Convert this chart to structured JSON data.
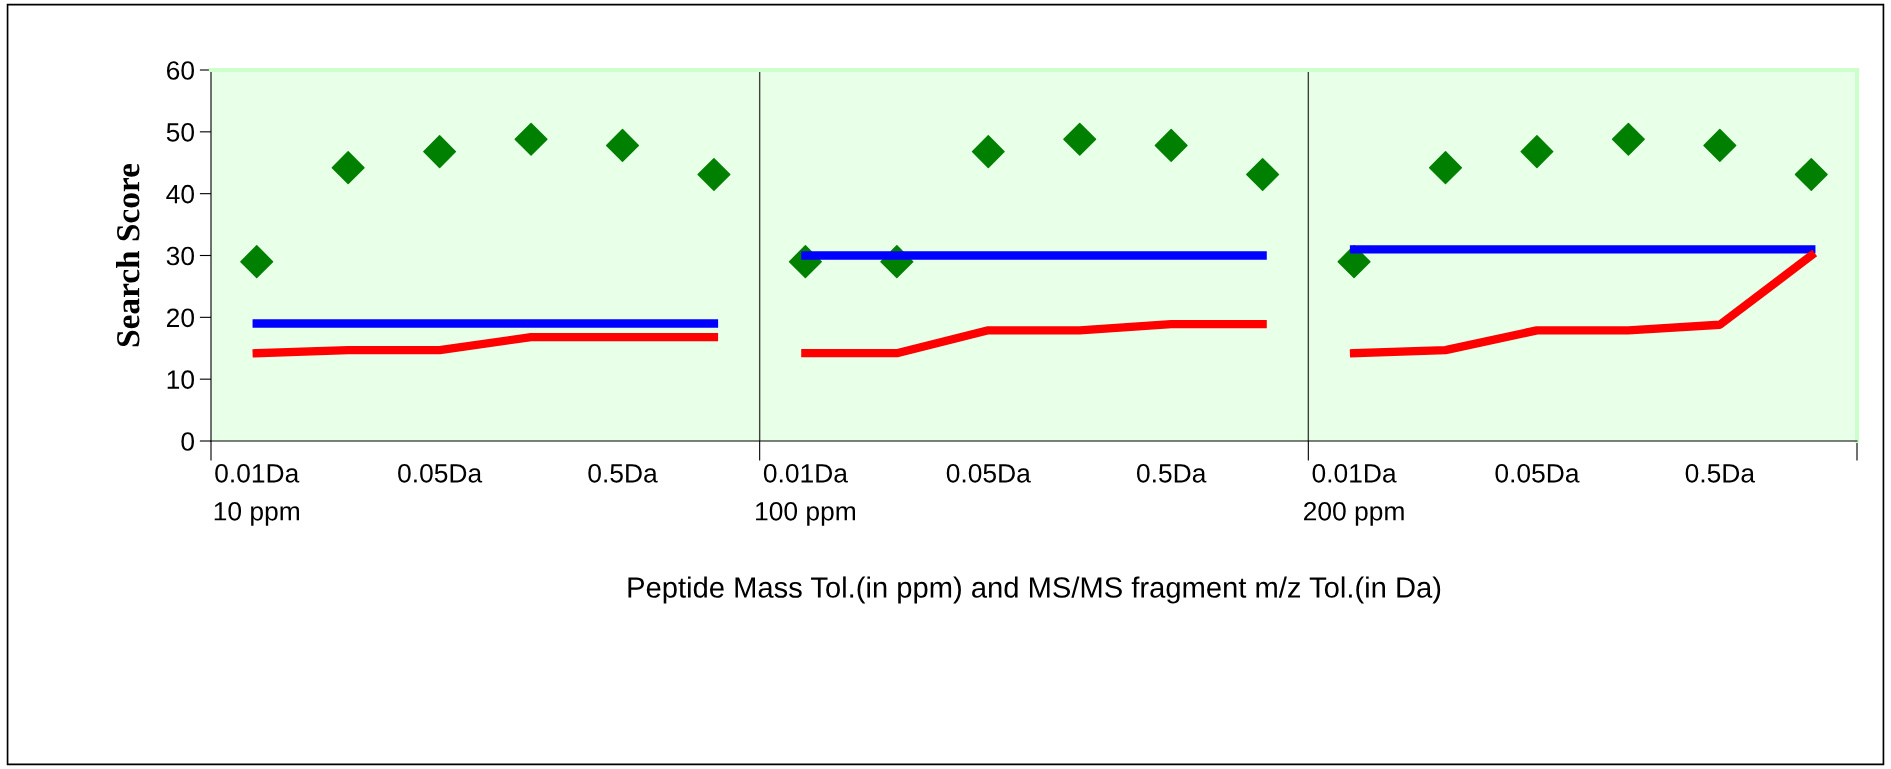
{
  "chart_data": {
    "type": "line",
    "ylabel": "Search Score",
    "xlabel": "Peptide Mass Tol.(in ppm) and MS/MS fragment m/z Tol.(in Da)",
    "categories": [
      "0.01Da\n10 ppm",
      null,
      "0.05Da",
      null,
      "0.5Da",
      null,
      "0.01Da\n100 ppm",
      null,
      "0.05Da",
      null,
      "0.5Da",
      null,
      "0.01Da\n200 ppm",
      null,
      "0.05Da",
      null,
      "0.5Da",
      null
    ],
    "ylim": [
      0,
      60
    ],
    "yticks": [
      0,
      10,
      20,
      30,
      40,
      50,
      60
    ],
    "grid": false,
    "legend": false,
    "series": [
      {
        "color": "#0000ff",
        "marker": "none",
        "line_style": "solid",
        "values": [
          19,
          19,
          19,
          19,
          19,
          19,
          null,
          null,
          null,
          null,
          null,
          null,
          null,
          null,
          null,
          null,
          null,
          null
        ]
      },
      {
        "color": "#0000ff",
        "marker": "none",
        "line_style": "solid",
        "values": [
          null,
          null,
          null,
          null,
          null,
          null,
          30,
          30,
          30,
          30,
          30,
          30,
          null,
          null,
          null,
          null,
          null,
          null
        ]
      },
      {
        "color": "#0000ff",
        "marker": "none",
        "line_style": "solid",
        "values": [
          null,
          null,
          null,
          null,
          null,
          null,
          null,
          null,
          null,
          null,
          null,
          null,
          31,
          31,
          31,
          31,
          31,
          31
        ]
      },
      {
        "color": "#ff0000",
        "marker": "none",
        "line_style": "solid",
        "values": [
          14.2,
          14.7,
          14.7,
          16.8,
          16.8,
          16.8,
          null,
          null,
          null,
          null,
          null,
          null,
          null,
          null,
          null,
          null,
          null,
          null
        ]
      },
      {
        "color": "#ff0000",
        "marker": "none",
        "line_style": "solid",
        "values": [
          null,
          null,
          null,
          null,
          null,
          null,
          14.2,
          14.2,
          17.9,
          17.9,
          18.9,
          18.9,
          null,
          null,
          null,
          null,
          null,
          null
        ]
      },
      {
        "color": "#ff0000",
        "marker": "none",
        "line_style": "solid",
        "values": [
          null,
          null,
          null,
          null,
          null,
          null,
          null,
          null,
          null,
          null,
          null,
          null,
          14.2,
          14.7,
          17.9,
          17.9,
          18.8,
          30
        ]
      },
      {
        "type": "scatter",
        "color": "#008000",
        "marker": "diamond",
        "values": [
          29,
          44.2,
          46.8,
          48.8,
          47.8,
          43.1,
          29,
          29,
          46.8,
          48.8,
          47.8,
          43.1,
          29,
          44.2,
          46.8,
          48.8,
          47.8,
          43.1
        ]
      }
    ]
  }
}
